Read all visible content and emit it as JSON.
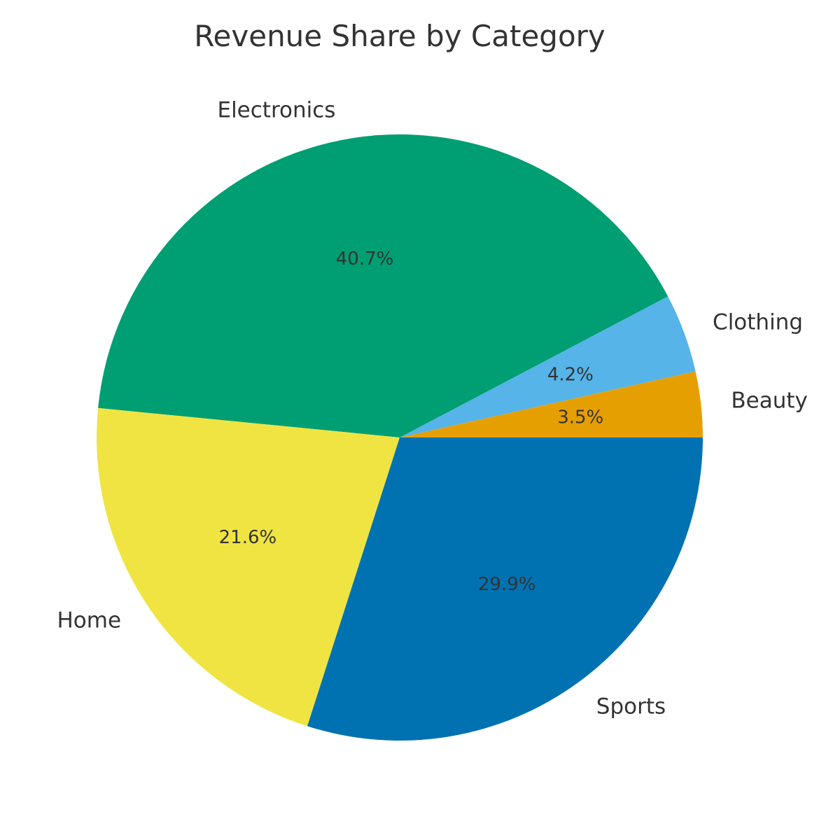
{
  "chart_data": {
    "type": "pie",
    "title": "Revenue Share by Category",
    "start_angle_deg": 0,
    "direction": "counterclockwise",
    "slices": [
      {
        "label": "Beauty",
        "value": 3.5,
        "pct_label": "3.5%",
        "color": "#E69F00"
      },
      {
        "label": "Clothing",
        "value": 4.2,
        "pct_label": "4.2%",
        "color": "#56B4E9"
      },
      {
        "label": "Electronics",
        "value": 40.7,
        "pct_label": "40.7%",
        "color": "#009E73"
      },
      {
        "label": "Home",
        "value": 21.6,
        "pct_label": "21.6%",
        "color": "#F0E442"
      },
      {
        "label": "Sports",
        "value": 29.9,
        "pct_label": "29.9%",
        "color": "#0072B2"
      }
    ]
  }
}
